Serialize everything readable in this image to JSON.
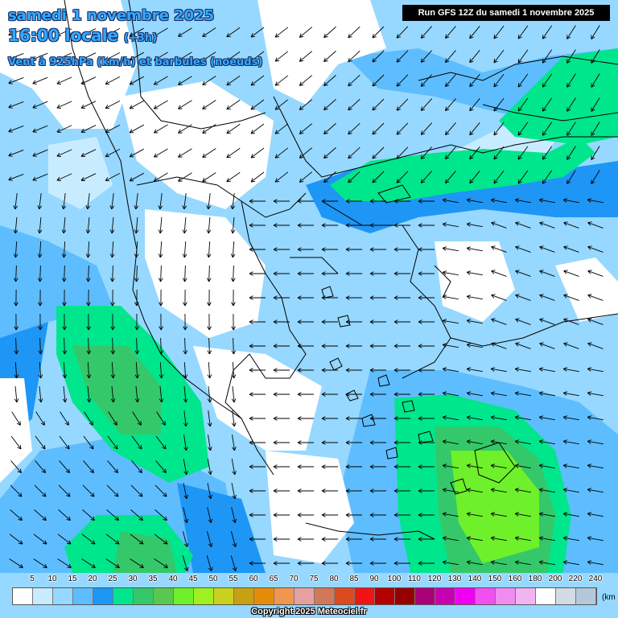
{
  "header": {
    "date_line": "samedi 1 novembre 2025",
    "time_line": "16:00 locale",
    "time_offset": "(+3h)",
    "subtitle": "Vent à 925hPa (km/h) et barbules (noeuds)",
    "run_info": "Run GFS 12Z du samedi 1 novembre 2025"
  },
  "legend": {
    "ticks": [
      "5",
      "10",
      "15",
      "20",
      "25",
      "30",
      "35",
      "40",
      "45",
      "50",
      "55",
      "60",
      "65",
      "70",
      "75",
      "80",
      "85",
      "90",
      "100",
      "110",
      "120",
      "130",
      "140",
      "150",
      "160",
      "180",
      "200",
      "220",
      "240"
    ],
    "unit": "(km",
    "colors": [
      "#ffffff",
      "#c8ecff",
      "#96d8ff",
      "#5ebdff",
      "#1e96f5",
      "#00e68c",
      "#34c86a",
      "#5ac850",
      "#6ef02a",
      "#a0f020",
      "#c8d21e",
      "#c8a014",
      "#e68c0a",
      "#f09650",
      "#e6a0a0",
      "#d2785a",
      "#dc4b1e",
      "#f01414",
      "#b40000",
      "#960000",
      "#aa0078",
      "#c800b4",
      "#f000f0",
      "#f050f0",
      "#f08cf0",
      "#f0b4f0",
      "#ffffff",
      "#d2dce6",
      "#b4c8dc"
    ]
  },
  "copyright": "Copyright 2025 Meteociel.fr",
  "map": {
    "land_border_color": "#000000",
    "arrow_color": "#000000",
    "colors": {
      "calm": "#ffffff",
      "very_light": "#c8ecff",
      "light": "#96d8ff",
      "moderate": "#5ebdff",
      "fresh": "#1e96f5",
      "strong": "#00e68c",
      "stronger": "#34c86a",
      "very_strong": "#6ef02a"
    }
  }
}
